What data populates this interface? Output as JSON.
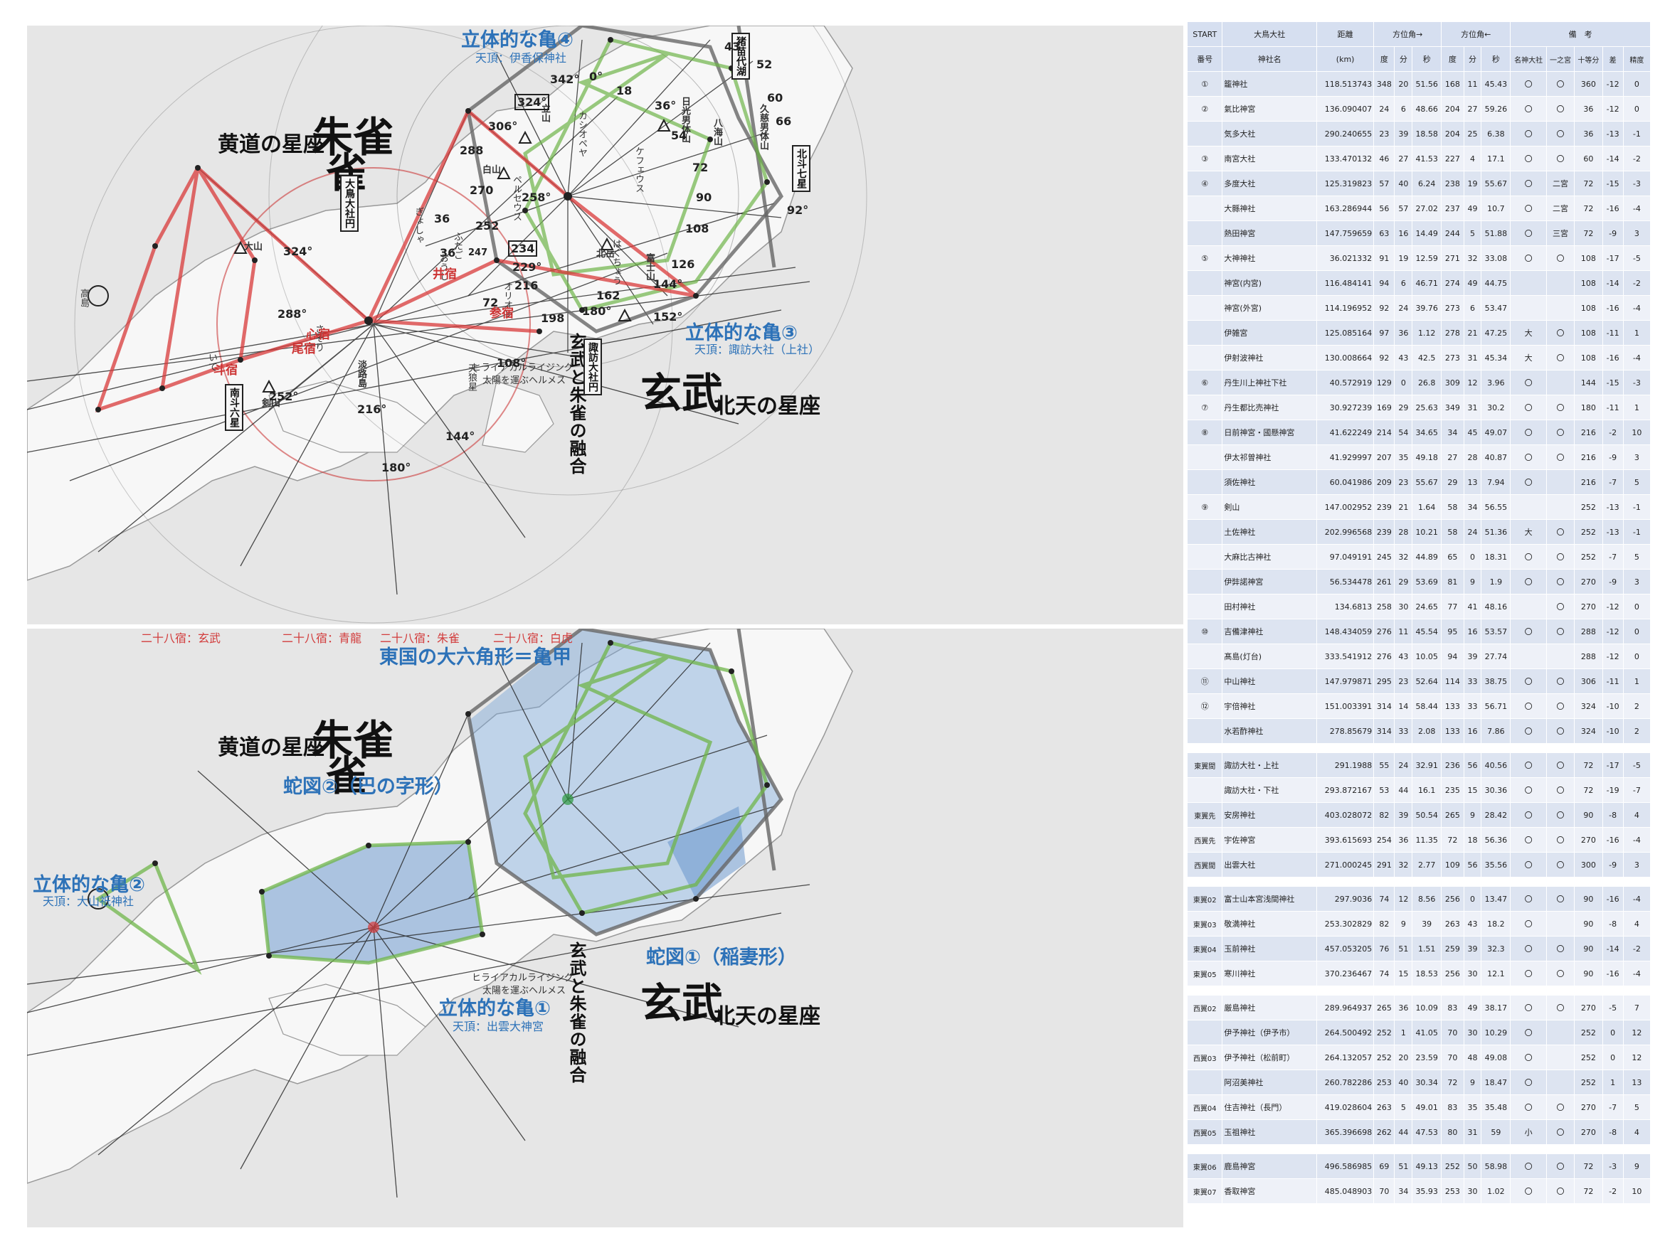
{
  "top_map": {
    "labels": {
      "suzaku": "朱雀",
      "genbu": "玄武",
      "koudou": "黄道の星座",
      "hokuten": "北天の星座",
      "turtle4": "立体的な亀④",
      "turtle4_sub": "天頂：伊香保神社",
      "turtle3": "立体的な亀③",
      "turtle3_sub": "天頂：諏訪大社（上社）",
      "fusion": "玄武と朱雀の融合",
      "hiraira": "ヒライアカルライジング",
      "hiraira2": "太陽を運ぶヘルメス"
    },
    "boxes": [
      "大鳥大社円",
      "諏訪大社円",
      "南斗六星",
      "北斗七星",
      "猪苗代湖"
    ],
    "constellations": [
      "カシオペヤ",
      "ペルセウス",
      "ケフェウス",
      "オリオン",
      "天狼星",
      "はくちょう",
      "さそり",
      "いて",
      "ぎょしゃ",
      "ふたご",
      "おうし"
    ],
    "lunar_mansions": [
      "斗宿",
      "尾宿",
      "心宿",
      "井宿",
      "参宿"
    ],
    "places": [
      "大山",
      "剣山",
      "白山",
      "立山",
      "日光男体山",
      "富士山",
      "北岳",
      "久慈男体山",
      "八海山",
      "淡路島",
      "高島"
    ],
    "degrees": [
      "0°",
      "18",
      "36°",
      "54",
      "72",
      "90",
      "92°",
      "108",
      "126",
      "144°",
      "152°",
      "162",
      "180°",
      "198",
      "216",
      "229°",
      "234",
      "252",
      "258°",
      "270",
      "288",
      "306°",
      "324°",
      "342°",
      "66",
      "60",
      "52",
      "43",
      "36",
      "288°",
      "324°",
      "252°",
      "216°",
      "180°",
      "144°",
      "108°",
      "72",
      "36",
      "247"
    ],
    "caption_row": [
      "二十八宿：玄武",
      "二十八宿：青龍",
      "二十八宿：朱雀",
      "二十八宿：白虎"
    ]
  },
  "bottom_map": {
    "labels": {
      "suzaku": "朱雀",
      "genbu": "玄武",
      "koudou": "黄道の星座",
      "hokuten": "北天の星座",
      "hexagon": "東国の大六角形＝亀甲",
      "snake2": "蛇図②（巴の字形）",
      "turtle2": "立体的な亀②",
      "turtle2_sub": "天頂：大山祇神社",
      "snake1": "蛇図①（稲妻形）",
      "turtle1": "立体的な亀①",
      "turtle1_sub": "天頂：出雲大神宮",
      "fusion": "玄武と朱雀の融合",
      "hiraira": "ヒライアカルライジング",
      "hiraira2": "太陽を運ぶヘルメス"
    }
  },
  "table": {
    "header1": [
      "START",
      "大鳥大社",
      "距離",
      "方位角→",
      "方位角←",
      "備　考"
    ],
    "header2": [
      "番号",
      "神社名",
      "(km)",
      "度",
      "分",
      "秒",
      "度",
      "分",
      "秒",
      "名神大社",
      "一之宮",
      "十等分",
      "差",
      "精度"
    ],
    "rows": [
      [
        "①",
        "籠神社",
        "118.513743",
        "348",
        "20",
        "51.56",
        "168",
        "11",
        "45.43",
        "〇",
        "〇",
        "360",
        "-12",
        "0"
      ],
      [
        "②",
        "氣比神宮",
        "136.090407",
        "24",
        "6",
        "48.66",
        "204",
        "27",
        "59.26",
        "〇",
        "〇",
        "36",
        "-12",
        "0"
      ],
      [
        "",
        "気多大社",
        "290.240655",
        "23",
        "39",
        "18.58",
        "204",
        "25",
        "6.38",
        "〇",
        "〇",
        "36",
        "-13",
        "-1"
      ],
      [
        "③",
        "南宮大社",
        "133.470132",
        "46",
        "27",
        "41.53",
        "227",
        "4",
        "17.1",
        "〇",
        "〇",
        "60",
        "-14",
        "-2"
      ],
      [
        "④",
        "多度大社",
        "125.319823",
        "57",
        "40",
        "6.24",
        "238",
        "19",
        "55.67",
        "〇",
        "二宮",
        "72",
        "-15",
        "-3"
      ],
      [
        "",
        "大縣神社",
        "163.286944",
        "56",
        "57",
        "27.02",
        "237",
        "49",
        "10.7",
        "〇",
        "二宮",
        "72",
        "-16",
        "-4"
      ],
      [
        "",
        "熱田神宮",
        "147.759659",
        "63",
        "16",
        "14.49",
        "244",
        "5",
        "51.88",
        "〇",
        "三宮",
        "72",
        "-9",
        "3"
      ],
      [
        "⑤",
        "大神神社",
        "36.021332",
        "91",
        "19",
        "12.59",
        "271",
        "32",
        "33.08",
        "〇",
        "〇",
        "108",
        "-17",
        "-5"
      ],
      [
        "",
        "神宮(内宮)",
        "116.484141",
        "94",
        "6",
        "46.71",
        "274",
        "49",
        "44.75",
        "",
        "",
        "108",
        "-14",
        "-2"
      ],
      [
        "",
        "神宮(外宮)",
        "114.196952",
        "92",
        "24",
        "39.76",
        "273",
        "6",
        "53.47",
        "",
        "",
        "108",
        "-16",
        "-4"
      ],
      [
        "",
        "伊雑宮",
        "125.085164",
        "97",
        "36",
        "1.12",
        "278",
        "21",
        "47.25",
        "大",
        "〇",
        "108",
        "-11",
        "1"
      ],
      [
        "",
        "伊射波神社",
        "130.008664",
        "92",
        "43",
        "42.5",
        "273",
        "31",
        "45.34",
        "大",
        "〇",
        "108",
        "-16",
        "-4"
      ],
      [
        "⑥",
        "丹生川上神社下社",
        "40.572919",
        "129",
        "0",
        "26.8",
        "309",
        "12",
        "3.96",
        "〇",
        "",
        "144",
        "-15",
        "-3"
      ],
      [
        "⑦",
        "丹生都比売神社",
        "30.927239",
        "169",
        "29",
        "25.63",
        "349",
        "31",
        "30.2",
        "〇",
        "〇",
        "180",
        "-11",
        "1"
      ],
      [
        "⑧",
        "日前神宮・國懸神宮",
        "41.622249",
        "214",
        "54",
        "34.65",
        "34",
        "45",
        "49.07",
        "〇",
        "〇",
        "216",
        "-2",
        "10"
      ],
      [
        "",
        "伊太祁曽神社",
        "41.929997",
        "207",
        "35",
        "49.18",
        "27",
        "28",
        "40.87",
        "〇",
        "〇",
        "216",
        "-9",
        "3"
      ],
      [
        "",
        "須佐神社",
        "60.041986",
        "209",
        "23",
        "55.67",
        "29",
        "13",
        "7.94",
        "〇",
        "",
        "216",
        "-7",
        "5"
      ],
      [
        "⑨",
        "剣山",
        "147.002952",
        "239",
        "21",
        "1.64",
        "58",
        "34",
        "56.55",
        "",
        "",
        "252",
        "-13",
        "-1"
      ],
      [
        "",
        "土佐神社",
        "202.996568",
        "239",
        "28",
        "10.21",
        "58",
        "24",
        "51.36",
        "大",
        "〇",
        "252",
        "-13",
        "-1"
      ],
      [
        "",
        "大麻比古神社",
        "97.049191",
        "245",
        "32",
        "44.89",
        "65",
        "0",
        "18.31",
        "〇",
        "〇",
        "252",
        "-7",
        "5"
      ],
      [
        "",
        "伊弉諾神宮",
        "56.534478",
        "261",
        "29",
        "53.69",
        "81",
        "9",
        "1.9",
        "〇",
        "〇",
        "270",
        "-9",
        "3"
      ],
      [
        "",
        "田村神社",
        "134.6813",
        "258",
        "30",
        "24.65",
        "77",
        "41",
        "48.16",
        "",
        "〇",
        "270",
        "-12",
        "0"
      ],
      [
        "⑩",
        "吉備津神社",
        "148.434059",
        "276",
        "11",
        "45.54",
        "95",
        "16",
        "53.57",
        "〇",
        "〇",
        "288",
        "-12",
        "0"
      ],
      [
        "",
        "髙島(灯台)",
        "333.541912",
        "276",
        "43",
        "10.05",
        "94",
        "39",
        "27.74",
        "",
        "",
        "288",
        "-12",
        "0"
      ],
      [
        "⑪",
        "中山神社",
        "147.979871",
        "295",
        "23",
        "52.64",
        "114",
        "33",
        "38.75",
        "〇",
        "〇",
        "306",
        "-11",
        "1"
      ],
      [
        "⑫",
        "宇倍神社",
        "151.003391",
        "314",
        "14",
        "58.44",
        "133",
        "33",
        "56.71",
        "〇",
        "〇",
        "324",
        "-10",
        "2"
      ],
      [
        "",
        "水若酢神社",
        "278.85679",
        "314",
        "33",
        "2.08",
        "133",
        "16",
        "7.86",
        "〇",
        "〇",
        "324",
        "-10",
        "2"
      ],
      [
        "GAP"
      ],
      [
        "東翼間",
        "諏訪大社・上社",
        "291.1988",
        "55",
        "24",
        "32.91",
        "236",
        "56",
        "40.56",
        "〇",
        "〇",
        "72",
        "-17",
        "-5"
      ],
      [
        "",
        "諏訪大社・下社",
        "293.872167",
        "53",
        "44",
        "16.1",
        "235",
        "15",
        "30.36",
        "〇",
        "〇",
        "72",
        "-19",
        "-7"
      ],
      [
        "東翼先",
        "安房神社",
        "403.028072",
        "82",
        "39",
        "50.54",
        "265",
        "9",
        "28.42",
        "〇",
        "〇",
        "90",
        "-8",
        "4"
      ],
      [
        "西翼先",
        "宇佐神宮",
        "393.615693",
        "254",
        "36",
        "11.35",
        "72",
        "18",
        "56.36",
        "〇",
        "〇",
        "270",
        "-16",
        "-4"
      ],
      [
        "西翼間",
        "出雲大社",
        "271.000245",
        "291",
        "32",
        "2.77",
        "109",
        "56",
        "35.56",
        "〇",
        "〇",
        "300",
        "-9",
        "3"
      ],
      [
        "GAP"
      ],
      [
        "東翼02",
        "富士山本宮浅間神社",
        "297.9036",
        "74",
        "12",
        "8.56",
        "256",
        "0",
        "13.47",
        "〇",
        "〇",
        "90",
        "-16",
        "-4"
      ],
      [
        "東翼03",
        "敬満神社",
        "253.302829",
        "82",
        "9",
        "39",
        "263",
        "43",
        "18.2",
        "〇",
        "",
        "90",
        "-8",
        "4"
      ],
      [
        "東翼04",
        "玉前神社",
        "457.053205",
        "76",
        "51",
        "1.51",
        "259",
        "39",
        "32.3",
        "〇",
        "〇",
        "90",
        "-14",
        "-2"
      ],
      [
        "東翼05",
        "寒川神社",
        "370.236467",
        "74",
        "15",
        "18.53",
        "256",
        "30",
        "12.1",
        "〇",
        "〇",
        "90",
        "-16",
        "-4"
      ],
      [
        "GAP"
      ],
      [
        "西翼02",
        "厳島神社",
        "289.964937",
        "265",
        "36",
        "10.09",
        "83",
        "49",
        "38.17",
        "〇",
        "〇",
        "270",
        "-5",
        "7"
      ],
      [
        "",
        "伊予神社（伊予市）",
        "264.500492",
        "252",
        "1",
        "41.05",
        "70",
        "30",
        "10.29",
        "〇",
        "",
        "252",
        "0",
        "12"
      ],
      [
        "西翼03",
        "伊予神社（松前町）",
        "264.132057",
        "252",
        "20",
        "23.59",
        "70",
        "48",
        "49.08",
        "〇",
        "",
        "252",
        "0",
        "12"
      ],
      [
        "",
        "阿沼美神社",
        "260.782286",
        "253",
        "40",
        "30.34",
        "72",
        "9",
        "18.47",
        "〇",
        "",
        "252",
        "1",
        "13"
      ],
      [
        "西翼04",
        "住吉神社（長門）",
        "419.028604",
        "263",
        "5",
        "49.01",
        "83",
        "35",
        "35.48",
        "〇",
        "〇",
        "270",
        "-7",
        "5"
      ],
      [
        "西翼05",
        "玉祖神社",
        "365.396698",
        "262",
        "44",
        "47.53",
        "80",
        "31",
        "59",
        "小",
        "〇",
        "270",
        "-8",
        "4"
      ],
      [
        "GAP"
      ],
      [
        "東翼06",
        "鹿島神宮",
        "496.586985",
        "69",
        "51",
        "49.13",
        "252",
        "50",
        "58.98",
        "〇",
        "〇",
        "72",
        "-3",
        "9"
      ],
      [
        "東翼07",
        "香取神宮",
        "485.048903",
        "70",
        "34",
        "35.93",
        "253",
        "30",
        "1.02",
        "〇",
        "〇",
        "72",
        "-2",
        "10"
      ]
    ]
  }
}
